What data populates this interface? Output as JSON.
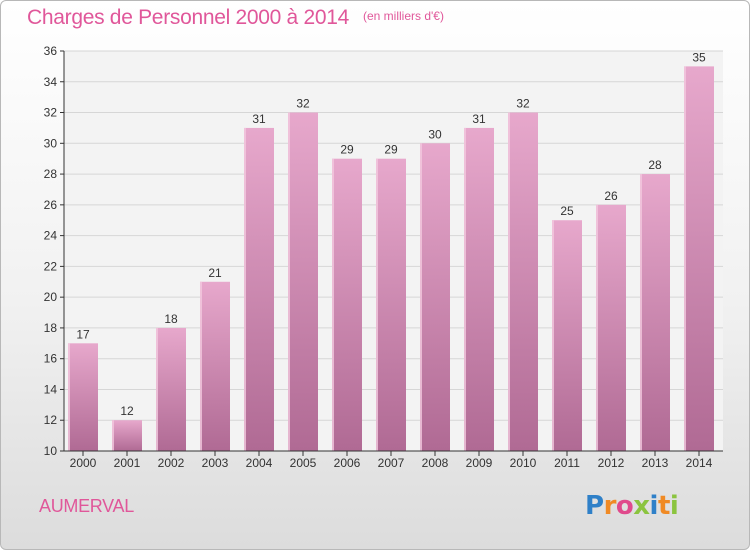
{
  "chart_data": {
    "type": "bar",
    "title": "Charges de Personnel 2000 à 2014",
    "subtitle": "(en milliers d'€)",
    "categories": [
      "2000",
      "2001",
      "2002",
      "2003",
      "2004",
      "2005",
      "2006",
      "2007",
      "2008",
      "2009",
      "2010",
      "2011",
      "2012",
      "2013",
      "2014"
    ],
    "values": [
      17,
      12,
      18,
      21,
      31,
      32,
      29,
      29,
      30,
      31,
      32,
      25,
      26,
      28,
      35
    ],
    "ylim": [
      10,
      36
    ],
    "yticks": [
      10,
      12,
      14,
      16,
      18,
      20,
      22,
      24,
      26,
      28,
      30,
      32,
      34,
      36
    ],
    "grid": true,
    "bar_color": "#d98fb8"
  },
  "footer": {
    "commune": "AUMERVAL",
    "brand_letters": [
      "P",
      "r",
      "o",
      "x",
      "i",
      "t",
      "i"
    ],
    "brand_colors": [
      "#2f80c8",
      "#f08a24",
      "#e04a8c",
      "#8bc43f",
      "#2f80c8",
      "#f08a24",
      "#8bc43f"
    ]
  },
  "colors": {
    "accent": "#e0579a",
    "axis": "#333333",
    "grid": "#d6d6d6"
  }
}
